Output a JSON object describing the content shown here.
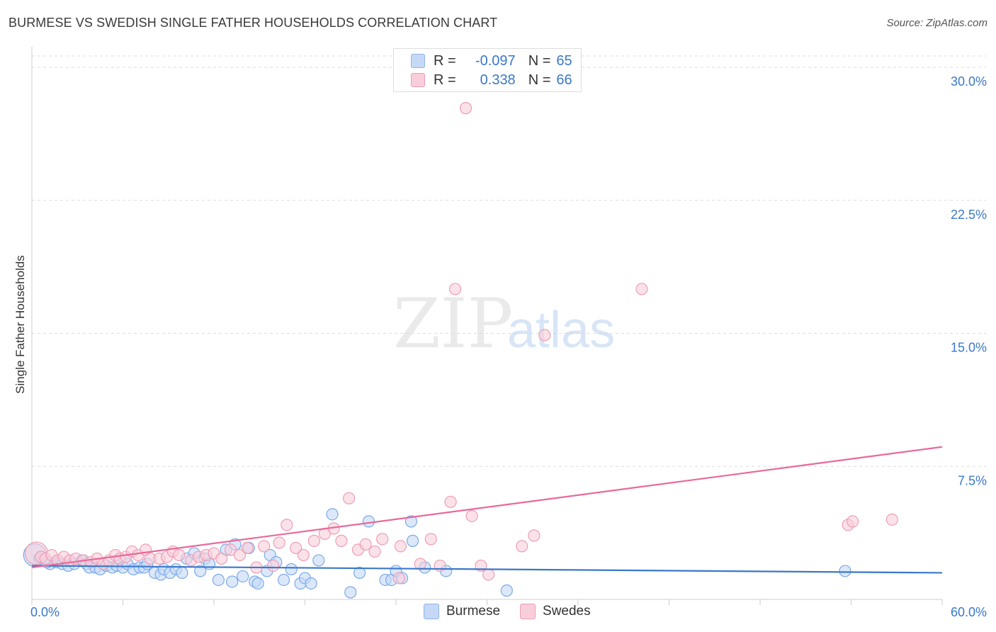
{
  "chart_data": {
    "type": "scatter",
    "title": "BURMESE VS SWEDISH SINGLE FATHER HOUSEHOLDS CORRELATION CHART",
    "source": "Source: ZipAtlas.com",
    "xlabel": "",
    "ylabel": "Single Father Households",
    "xlim": [
      0,
      60
    ],
    "ylim": [
      0,
      31
    ],
    "x_tick_labels": [
      {
        "value": 0,
        "label": "0.0%"
      },
      {
        "value": 60,
        "label": "60.0%"
      }
    ],
    "y_tick_labels": [
      {
        "value": 7.5,
        "label": "7.5%"
      },
      {
        "value": 15.0,
        "label": "15.0%"
      },
      {
        "value": 22.5,
        "label": "22.5%"
      },
      {
        "value": 30.0,
        "label": "30.0%"
      }
    ],
    "x_minor_ticks": [
      0,
      6,
      12,
      18,
      24,
      30,
      36,
      42,
      48,
      54,
      60
    ],
    "gridlines": "horizontal dashed",
    "legend_position": "top-center",
    "watermark": "ZIPatlas",
    "legend": [
      {
        "name": "Burmese",
        "r_label": "R =",
        "r_value": "-0.097",
        "n_label": "N =",
        "n_value": "65"
      },
      {
        "name": "Swedes",
        "r_label": "R =",
        "r_value": " 0.338",
        "n_label": "N =",
        "n_value": "66"
      }
    ],
    "series": [
      {
        "name": "Burmese",
        "color": "#7aa9e8",
        "fill": "#c5d9f6",
        "trend_color": "#3a78c9",
        "trend": {
          "x0": 0,
          "y0": 1.9,
          "x1": 60,
          "y1": 1.5
        },
        "points": [
          [
            0.2,
            2.5
          ],
          [
            0.5,
            2.3
          ],
          [
            0.8,
            2.2
          ],
          [
            1.2,
            2.0
          ],
          [
            1.6,
            2.1
          ],
          [
            2.0,
            2.0
          ],
          [
            2.4,
            1.9
          ],
          [
            2.8,
            2.0
          ],
          [
            3.3,
            2.2
          ],
          [
            3.6,
            2.0
          ],
          [
            3.8,
            1.8
          ],
          [
            4.2,
            1.8
          ],
          [
            4.5,
            1.7
          ],
          [
            4.9,
            1.9
          ],
          [
            5.3,
            1.8
          ],
          [
            5.6,
            1.9
          ],
          [
            6.0,
            1.8
          ],
          [
            6.3,
            2.0
          ],
          [
            6.7,
            1.7
          ],
          [
            7.1,
            1.8
          ],
          [
            7.4,
            1.8
          ],
          [
            7.6,
            2.0
          ],
          [
            8.1,
            1.5
          ],
          [
            8.5,
            1.4
          ],
          [
            8.7,
            1.7
          ],
          [
            9.1,
            1.5
          ],
          [
            9.5,
            1.7
          ],
          [
            9.9,
            1.5
          ],
          [
            10.2,
            2.3
          ],
          [
            10.7,
            2.6
          ],
          [
            11.1,
            1.6
          ],
          [
            11.4,
            2.3
          ],
          [
            11.7,
            2.0
          ],
          [
            12.3,
            1.1
          ],
          [
            12.8,
            2.8
          ],
          [
            13.4,
            3.1
          ],
          [
            13.2,
            1.0
          ],
          [
            13.9,
            1.3
          ],
          [
            14.3,
            2.9
          ],
          [
            14.7,
            1.0
          ],
          [
            14.9,
            0.9
          ],
          [
            15.5,
            1.6
          ],
          [
            15.7,
            2.5
          ],
          [
            16.1,
            2.1
          ],
          [
            16.6,
            1.1
          ],
          [
            17.1,
            1.7
          ],
          [
            17.7,
            0.9
          ],
          [
            18.0,
            1.2
          ],
          [
            18.4,
            0.9
          ],
          [
            18.9,
            2.2
          ],
          [
            19.8,
            4.8
          ],
          [
            21.0,
            0.4
          ],
          [
            21.6,
            1.5
          ],
          [
            22.2,
            4.4
          ],
          [
            23.3,
            1.1
          ],
          [
            23.7,
            1.1
          ],
          [
            24.0,
            1.6
          ],
          [
            24.4,
            1.2
          ],
          [
            25.0,
            4.4
          ],
          [
            25.1,
            3.3
          ],
          [
            25.9,
            1.8
          ],
          [
            27.3,
            1.6
          ],
          [
            31.3,
            0.5
          ],
          [
            53.6,
            1.6
          ],
          [
            1.0,
            2.1
          ]
        ]
      },
      {
        "name": "Swedes",
        "color": "#ee9db6",
        "fill": "#f9cedb",
        "trend_color": "#e8699a",
        "trend_pink_unused": "",
        "trend": {
          "x0": 0,
          "y0": 1.8,
          "x1": 60,
          "y1": 8.6
        },
        "points": [
          [
            0.3,
            2.6
          ],
          [
            0.6,
            2.4
          ],
          [
            0.9,
            2.3
          ],
          [
            1.3,
            2.5
          ],
          [
            1.7,
            2.2
          ],
          [
            2.1,
            2.4
          ],
          [
            2.5,
            2.2
          ],
          [
            2.9,
            2.3
          ],
          [
            3.4,
            2.2
          ],
          [
            3.9,
            2.1
          ],
          [
            4.3,
            2.3
          ],
          [
            4.7,
            2.0
          ],
          [
            5.1,
            2.2
          ],
          [
            5.5,
            2.5
          ],
          [
            5.8,
            2.3
          ],
          [
            6.2,
            2.4
          ],
          [
            6.6,
            2.7
          ],
          [
            7.0,
            2.5
          ],
          [
            7.5,
            2.8
          ],
          [
            7.8,
            2.3
          ],
          [
            8.4,
            2.3
          ],
          [
            8.9,
            2.4
          ],
          [
            9.3,
            2.7
          ],
          [
            9.7,
            2.5
          ],
          [
            10.5,
            2.2
          ],
          [
            11.0,
            2.4
          ],
          [
            11.5,
            2.5
          ],
          [
            12.0,
            2.6
          ],
          [
            12.5,
            2.3
          ],
          [
            13.1,
            2.8
          ],
          [
            13.7,
            2.5
          ],
          [
            14.2,
            2.9
          ],
          [
            14.8,
            1.8
          ],
          [
            15.3,
            3.0
          ],
          [
            15.9,
            1.9
          ],
          [
            16.3,
            3.2
          ],
          [
            16.8,
            4.2
          ],
          [
            17.4,
            2.9
          ],
          [
            17.9,
            2.5
          ],
          [
            18.6,
            3.3
          ],
          [
            19.3,
            3.7
          ],
          [
            19.9,
            4.0
          ],
          [
            20.4,
            3.3
          ],
          [
            20.9,
            5.7
          ],
          [
            21.5,
            2.8
          ],
          [
            22.0,
            3.1
          ],
          [
            22.6,
            2.7
          ],
          [
            23.1,
            3.4
          ],
          [
            24.3,
            3.0
          ],
          [
            25.6,
            2.0
          ],
          [
            26.3,
            3.4
          ],
          [
            26.9,
            1.9
          ],
          [
            27.6,
            5.5
          ],
          [
            27.9,
            17.5
          ],
          [
            28.6,
            27.7
          ],
          [
            29.0,
            4.7
          ],
          [
            29.6,
            1.9
          ],
          [
            30.1,
            1.4
          ],
          [
            32.3,
            3.0
          ],
          [
            33.1,
            3.6
          ],
          [
            33.8,
            14.9
          ],
          [
            40.2,
            17.5
          ],
          [
            53.8,
            4.2
          ],
          [
            54.1,
            4.4
          ],
          [
            56.7,
            4.5
          ],
          [
            24.2,
            1.2
          ]
        ]
      }
    ]
  }
}
